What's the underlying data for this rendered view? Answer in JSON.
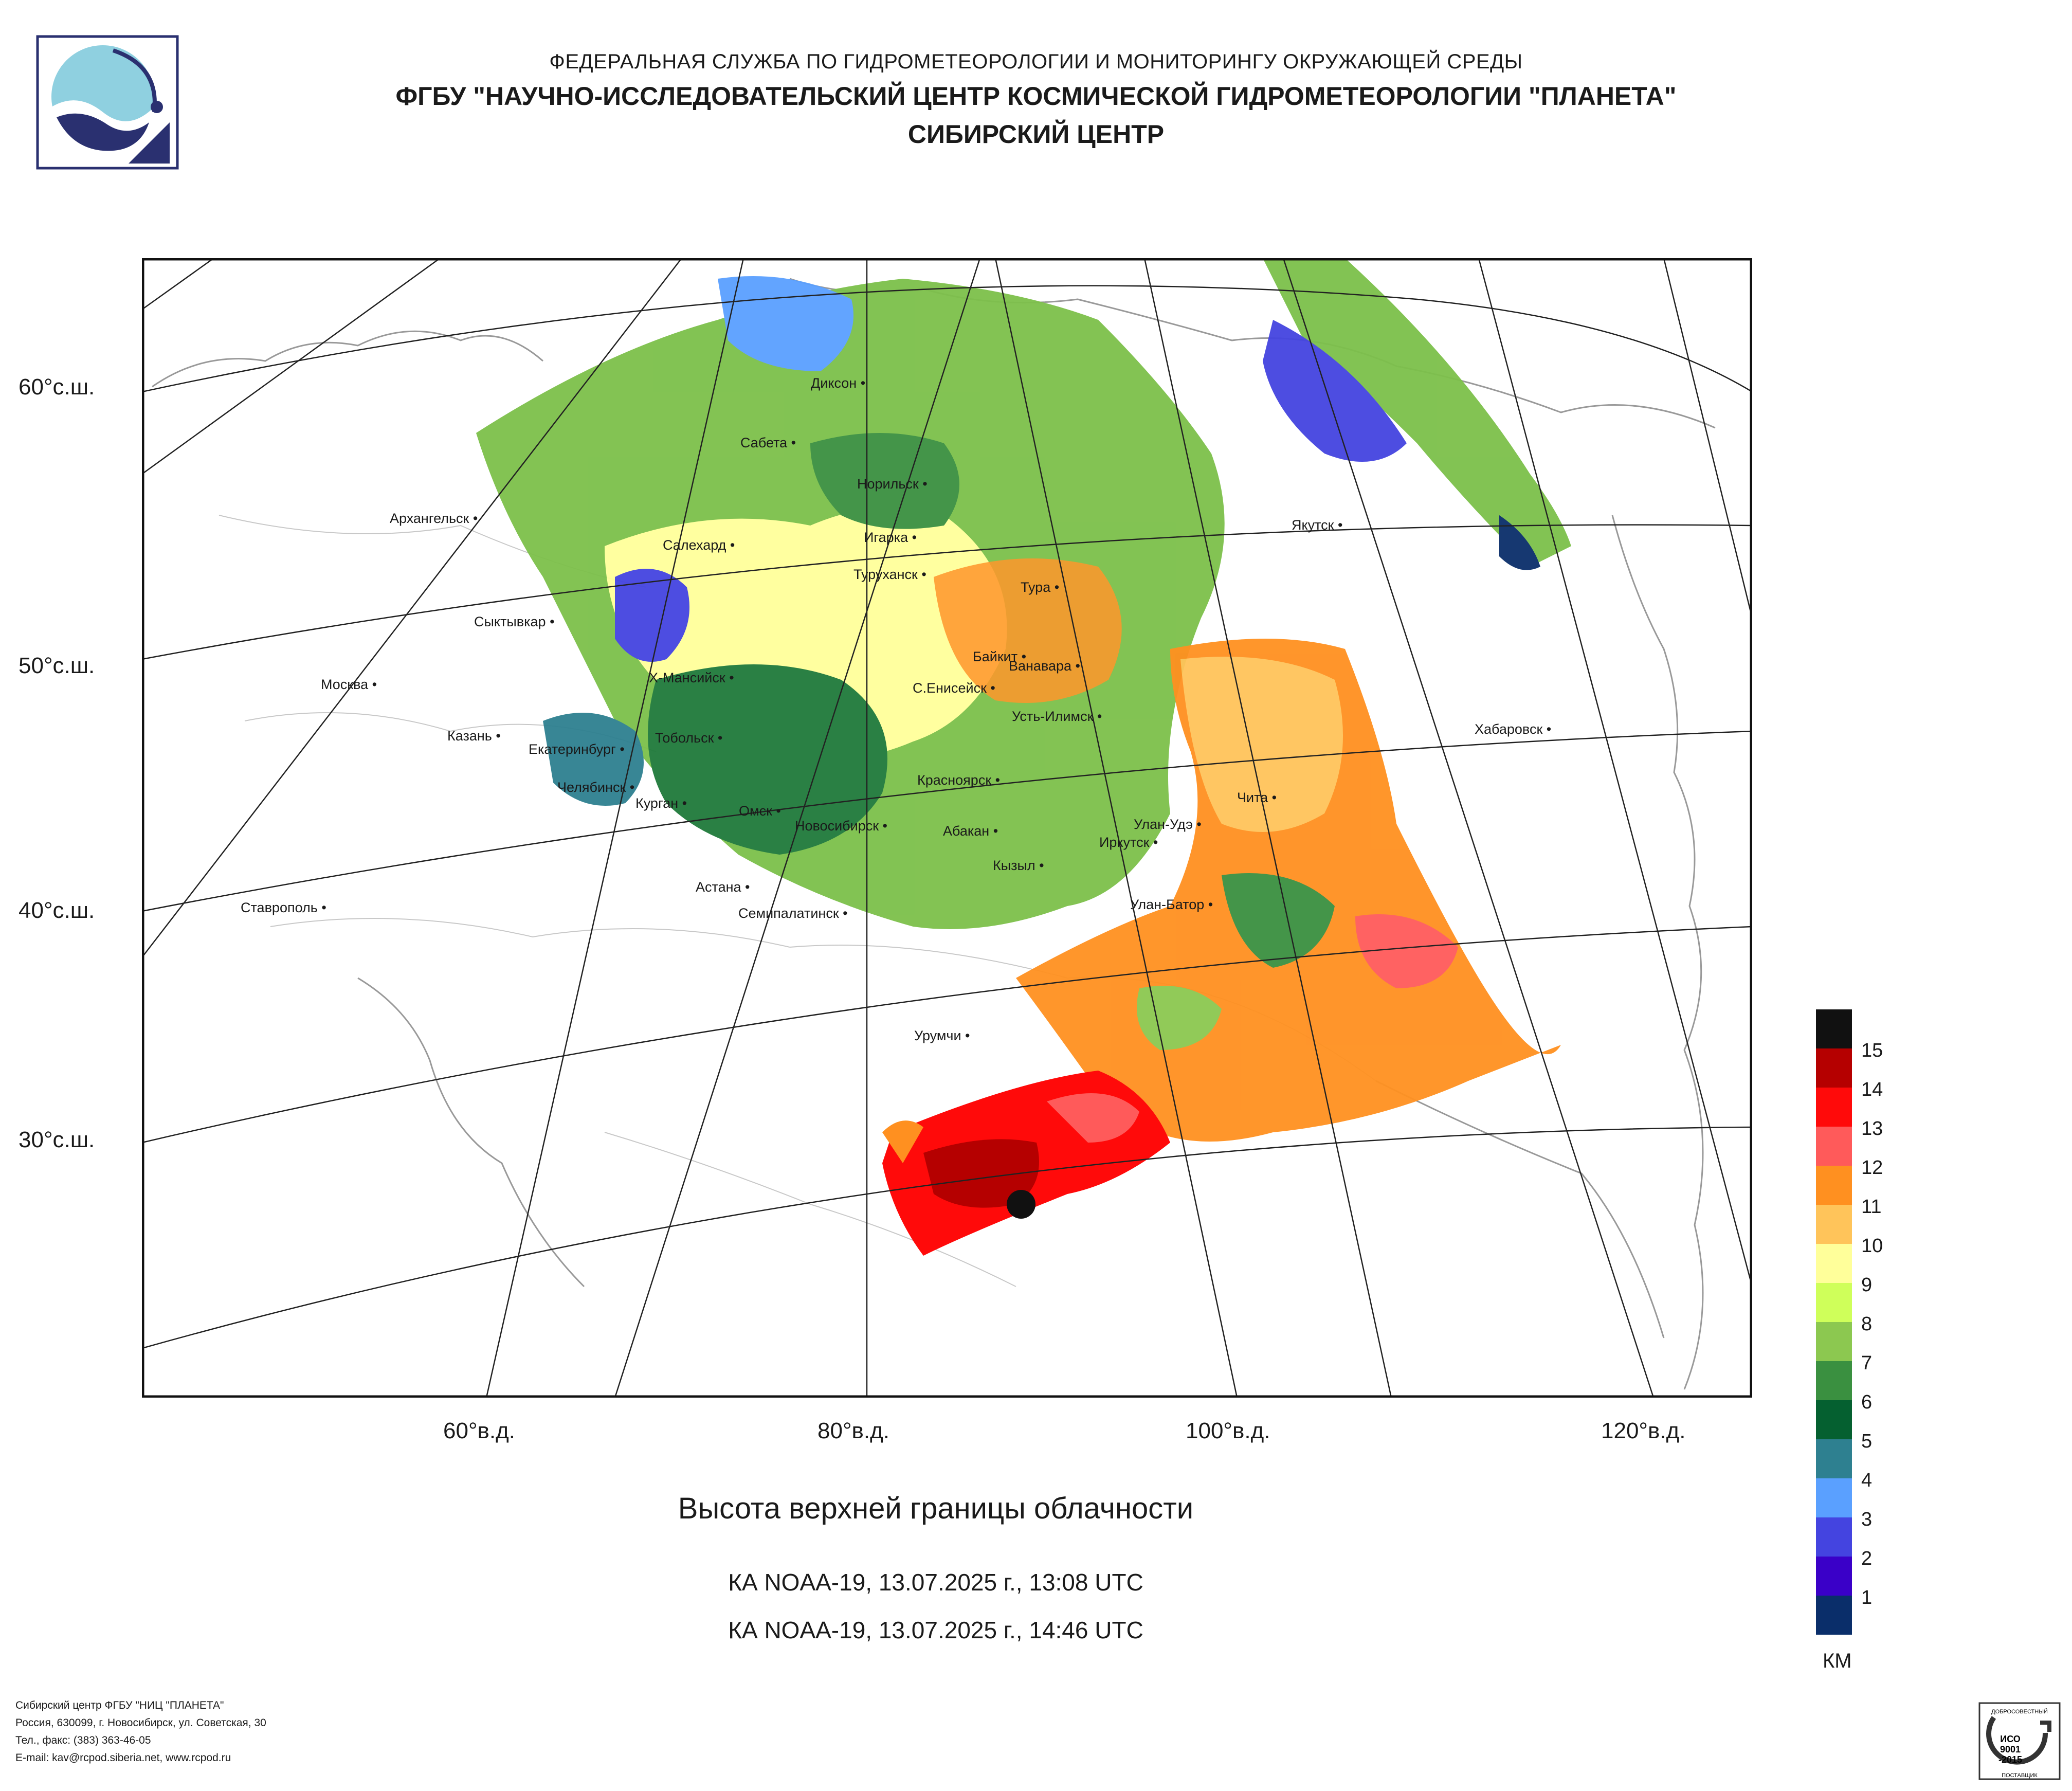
{
  "header": {
    "agency": "ФЕДЕРАЛЬНАЯ СЛУЖБА ПО ГИДРОМЕТЕОРОЛОГИИ И МОНИТОРИНГУ ОКРУЖАЮЩЕЙ СРЕДЫ",
    "institute": "ФГБУ \"НАУЧНО-ИССЛЕДОВАТЕЛЬСКИЙ ЦЕНТР КОСМИЧЕСКОЙ ГИДРОМЕТЕОРОЛОГИИ \"ПЛАНЕТА\"",
    "center": "СИБИРСКИЙ ЦЕНТР"
  },
  "map": {
    "lat_labels": [
      "60°с.ш.",
      "50°с.ш.",
      "40°с.ш.",
      "30°с.ш."
    ],
    "lon_labels": [
      "60°в.д.",
      "80°в.д.",
      "100°в.д.",
      "120°в.д."
    ],
    "cities": [
      "Диксон",
      "Сабета",
      "Норильск",
      "Архангельск",
      "Салехард",
      "Игарка",
      "Туруханск",
      "Тура",
      "Якутск",
      "Сыктывкар",
      "Байкит",
      "Ванавара",
      "Москва",
      "Х-Мансийск",
      "С.Енисейск",
      "Усть-Илимск",
      "Хабаровск",
      "Казань",
      "Екатеринбург",
      "Тобольск",
      "Челябинск",
      "Курган",
      "Красноярск",
      "Чита",
      "Омск",
      "Новосибирск",
      "Абакан",
      "Улан-Удэ",
      "Иркутск",
      "Кызыл",
      "Астана",
      "Ставрополь",
      "Семипалатинск",
      "Улан-Батор",
      "Урумчи"
    ]
  },
  "product_title": "Высота верхней границы облачности",
  "passes": [
    "КА NOAA-19, 13.07.2025 г., 13:08 UTC",
    "КА NOAA-19, 13.07.2025 г., 14:46 UTC"
  ],
  "legend": {
    "levels": [
      "15",
      "14",
      "13",
      "12",
      "11",
      "10",
      "9",
      "8",
      "7",
      "6",
      "5",
      "4",
      "3",
      "2",
      "1"
    ],
    "colors": [
      "#111111",
      "#b50000",
      "#ff0a0a",
      "#ff5a5a",
      "#ff9020",
      "#ffc45a",
      "#ffff9a",
      "#cfff5a",
      "#8cc850",
      "#3a9040",
      "#056030",
      "#2e8090",
      "#5aa0ff",
      "#4444e0",
      "#3a00c8",
      "#0a2e6a"
    ],
    "unit": "КМ"
  },
  "footer": [
    "Сибирский центр ФГБУ \"НИЦ \"ПЛАНЕТА\"",
    "Россия, 630099, г. Новосибирск, ул. Советская, 30",
    "Тел., факс: (383) 363-46-05",
    "E-mail: kav@rcpod.siberia.net, www.rcpod.ru"
  ],
  "iso_badge": [
    "ДОБРОСОВЕСТНЫЙ",
    "ИСО",
    "9001",
    "-2015",
    "ПОСТАВЩИК"
  ]
}
